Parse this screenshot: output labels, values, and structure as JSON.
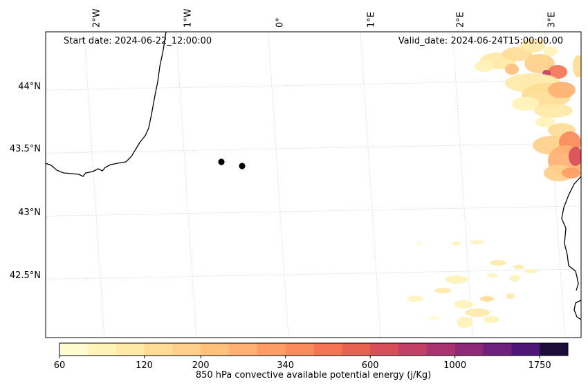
{
  "map": {
    "start_date": "Start date: 2024-06-22_12:00:00",
    "valid_date": "Valid_date: 2024-06-24T15:00:00.00",
    "lon_labels": [
      "2°W",
      "1°W",
      "0°",
      "1°E",
      "2°E",
      "3°E"
    ],
    "lat_labels": [
      "44°N",
      "43.5°N",
      "43°N",
      "42.5°N"
    ],
    "points": [
      {
        "lon": -0.62,
        "lat": 43.38
      },
      {
        "lon": -0.4,
        "lat": 43.36
      }
    ]
  },
  "colorbar": {
    "title": "850 hPa convective available potential energy (j/Kg)",
    "tick_labels": [
      "60",
      "120",
      "200",
      "340",
      "600",
      "1000",
      "1750"
    ],
    "colors": [
      "#fffbd0",
      "#fff3b8",
      "#ffe9a6",
      "#ffdc96",
      "#ffcf89",
      "#ffc07c",
      "#ffb173",
      "#ff9d66",
      "#fb8a5c",
      "#f47455",
      "#e8604f",
      "#d84e5a",
      "#c23f67",
      "#a83370",
      "#8c2a78",
      "#6e217c",
      "#4e1676",
      "#1c0c3a"
    ],
    "bins": [
      60,
      80,
      100,
      120,
      160,
      200,
      250,
      300,
      340,
      400,
      500,
      600,
      700,
      850,
      1000,
      1250,
      1500,
      1750,
      2000
    ]
  }
}
